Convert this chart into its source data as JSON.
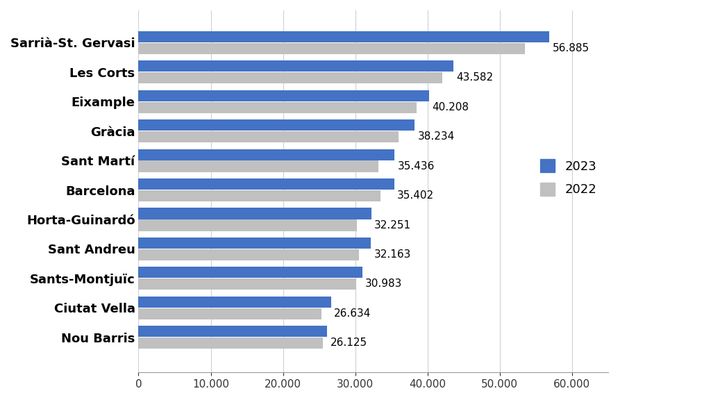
{
  "categories": [
    "Sarrià-St. Gervasi",
    "Les Corts",
    "Eixample",
    "Gràcia",
    "Sant Martí",
    "Barcelona",
    "Horta-Guinardó",
    "Sant Andreu",
    "Sants-Montjuïc",
    "Ciutat Vella",
    "Nou Barris"
  ],
  "values_2023": [
    56885,
    43582,
    40208,
    38234,
    35436,
    35402,
    32251,
    32163,
    30983,
    26634,
    26125
  ],
  "values_2022": [
    53500,
    42000,
    38500,
    36000,
    33200,
    33500,
    30200,
    30500,
    30100,
    25300,
    25500
  ],
  "color_2023": "#4472C4",
  "color_2022": "#C0C0C0",
  "xlim": [
    0,
    65000
  ],
  "xticks": [
    0,
    10000,
    20000,
    30000,
    40000,
    50000,
    60000
  ],
  "xtick_labels": [
    "0",
    "10.000",
    "20.000",
    "30.000",
    "40.000",
    "50.000",
    "60.000"
  ],
  "legend_labels": [
    "2023",
    "2022"
  ],
  "background_color": "#FFFFFF",
  "label_fontsize": 13,
  "tick_fontsize": 11,
  "bar_label_fontsize": 11,
  "bar_height": 0.38,
  "bar_gap": 0.02
}
